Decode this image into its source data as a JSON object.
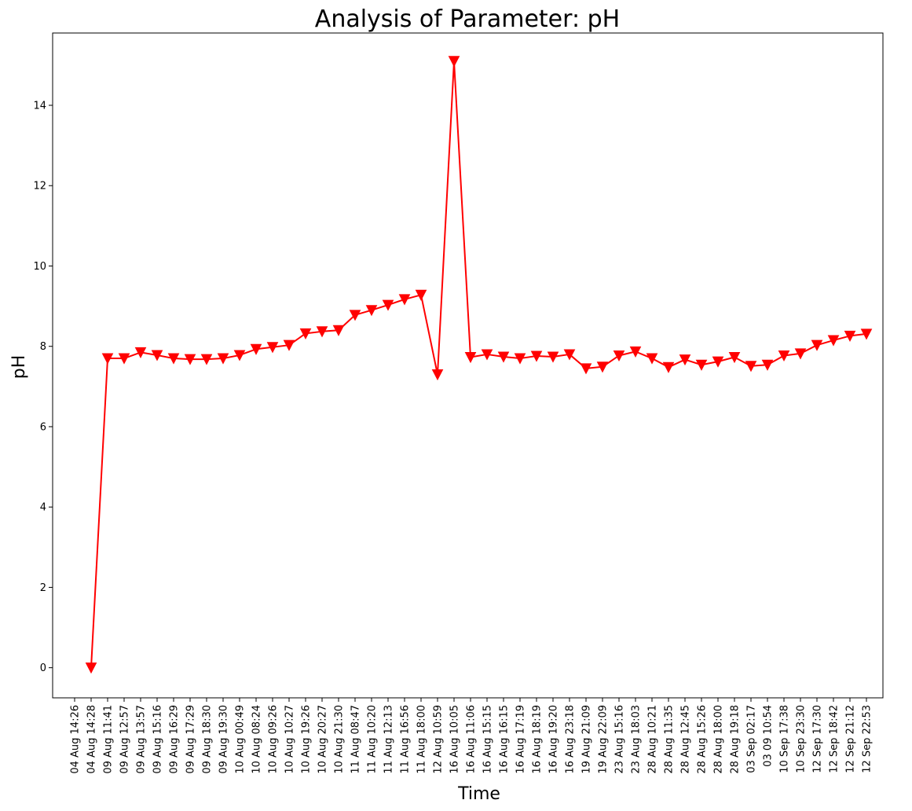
{
  "chart_data": {
    "type": "line",
    "title": "Analysis of Parameter: pH",
    "xlabel": "Time",
    "ylabel": "pH",
    "ylim": [
      -0.75,
      15.8
    ],
    "yticks": [
      0,
      2,
      4,
      6,
      8,
      10,
      12,
      14
    ],
    "grid": false,
    "categories": [
      "04 Aug 14:26",
      "04 Aug 14:28",
      "09 Aug 11:41",
      "09 Aug 12:57",
      "09 Aug 13:57",
      "09 Aug 15:16",
      "09 Aug 16:29",
      "09 Aug 17:29",
      "09 Aug 18:30",
      "09 Aug 19:30",
      "10 Aug 00:49",
      "10 Aug 08:24",
      "10 Aug 09:26",
      "10 Aug 10:27",
      "10 Aug 19:26",
      "10 Aug 20:27",
      "10 Aug 21:30",
      "11 Aug 08:47",
      "11 Aug 10:20",
      "11 Aug 12:13",
      "11 Aug 16:56",
      "11 Aug 18:00",
      "12 Aug 10:59",
      "16 Aug 10:05",
      "16 Aug 11:06",
      "16 Aug 15:15",
      "16 Aug 16:15",
      "16 Aug 17:19",
      "16 Aug 18:19",
      "16 Aug 19:20",
      "16 Aug 23:18",
      "19 Aug 21:09",
      "19 Aug 22:09",
      "23 Aug 15:16",
      "23 Aug 18:03",
      "28 Aug 10:21",
      "28 Aug 11:35",
      "28 Aug 12:45",
      "28 Aug 15:26",
      "28 Aug 18:00",
      "28 Aug 19:18",
      "03 Sep 02:17",
      "03 09 10:54",
      "10 Sep 17:38",
      "10 Sep 23:30",
      "12 Sep 17:30",
      "12 Sep 18:42",
      "12 Sep 21:12",
      "12 Sep 22:53"
    ],
    "series": [
      {
        "color": "#ff0000",
        "marker": "triangle-down",
        "values": [
          null,
          0.0,
          7.7,
          7.7,
          7.85,
          7.78,
          7.7,
          7.68,
          7.68,
          7.7,
          7.78,
          7.93,
          7.98,
          8.03,
          8.32,
          8.37,
          8.4,
          8.78,
          8.9,
          9.03,
          9.17,
          9.28,
          7.3,
          15.1,
          7.73,
          7.8,
          7.74,
          7.7,
          7.76,
          7.74,
          7.8,
          7.45,
          7.49,
          7.77,
          7.87,
          7.7,
          7.48,
          7.67,
          7.54,
          7.62,
          7.73,
          7.51,
          7.54,
          7.77,
          7.82,
          8.03,
          8.15,
          8.26,
          8.31
        ]
      }
    ]
  }
}
